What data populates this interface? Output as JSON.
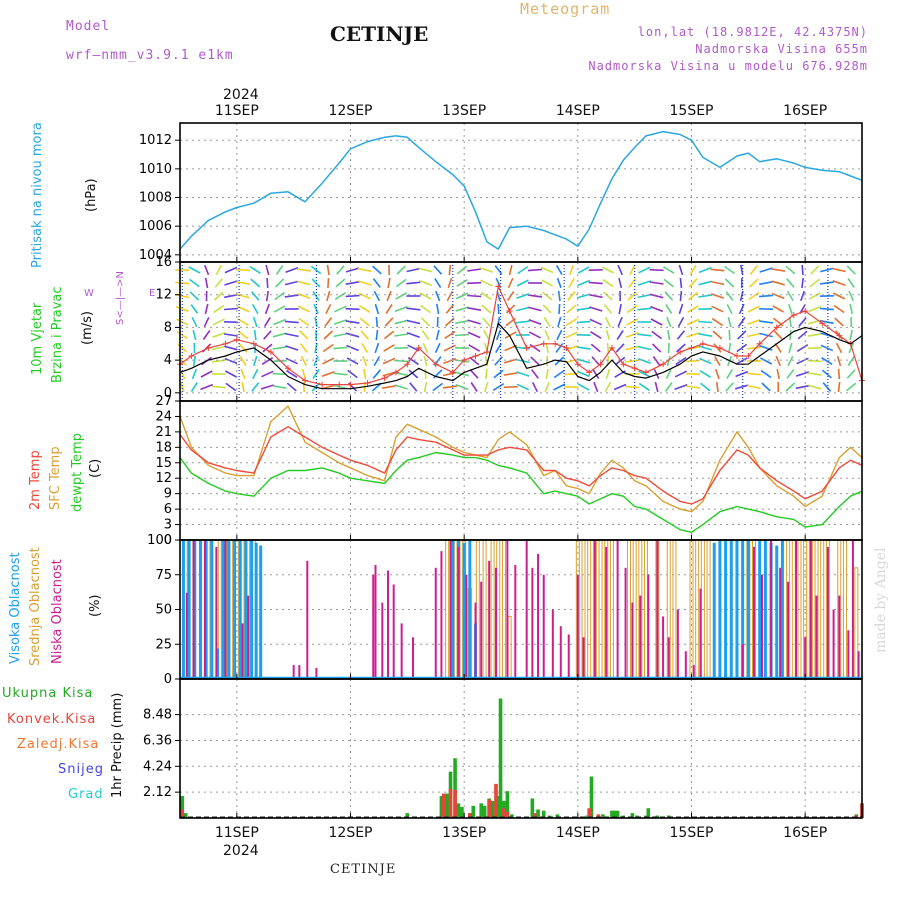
{
  "header": {
    "model_label": "Model",
    "model_name": "wrf—nmm_v3.9.1  e1km",
    "location": "CETINJE",
    "product": "Meteogram",
    "lonlat": "lon,lat (18.9812E, 42.4375N)",
    "elevation": "Nadmorska Visina 655m",
    "elevation_model": "Nadmorska Visina u modelu 676.928m",
    "watermark": "made by Angel",
    "footer_location": "CETINJE"
  },
  "colors": {
    "pressure": "#2aa7e0",
    "temp2m": "#f04a3a",
    "sfc": "#d9a030",
    "dewpt": "#22cc22",
    "high_cloud": "#1aa0ee",
    "mid_cloud": "#d9a030",
    "low_cloud": "#cc1f8f",
    "total_precip": "#22aa22",
    "conv_precip": "#e8443a",
    "freezing": "#ee7733",
    "snow": "#4444ee",
    "graupel": "#22cccc",
    "magenta_text": "#b05acb",
    "gold_text": "#e3b56a"
  },
  "axis_labels": {
    "year": "2024",
    "days": [
      "11SEP",
      "12SEP",
      "13SEP",
      "14SEP",
      "15SEP",
      "16SEP"
    ]
  },
  "panels": {
    "pressure": {
      "title": "Pritisak na nivou mora",
      "unit": "(hPa)"
    },
    "wind": {
      "title1": "10m Vjetar",
      "title2": "Brzina i Pravac",
      "unit": "(m/s)",
      "compass_ns": "S<—|—>N",
      "compass_w": "W",
      "compass_e": "E"
    },
    "temp": {
      "title1": "2m Temp",
      "title2": "SFC Temp",
      "title3": "dewpt Temp",
      "unit": "(C)"
    },
    "cloud": {
      "title1": "Visoka Oblacnost",
      "title2": "Srednja Oblacnost",
      "title3": "Niska Oblacnost",
      "unit": "(%)"
    },
    "precip": {
      "title": "1hr Precip (mm)",
      "legend": [
        "Ukupna Kisa",
        "Konvek.Kisa",
        "Zaledj.Kisa",
        "Snijeg",
        "Grad"
      ]
    }
  },
  "chart_data": [
    {
      "type": "line",
      "name": "pressure",
      "xlabel": "",
      "ylabel": "(hPa)",
      "x_range": [
        10.5,
        16.5
      ],
      "ylim": [
        1003.5,
        1013.2
      ],
      "yticks": [
        1004,
        1006,
        1008,
        1010,
        1012
      ],
      "grid": true,
      "x": [
        10.5,
        10.6,
        10.75,
        10.9,
        11.0,
        11.15,
        11.3,
        11.45,
        11.6,
        11.75,
        11.9,
        12.0,
        12.15,
        12.3,
        12.4,
        12.5,
        12.6,
        12.75,
        12.9,
        13.0,
        13.1,
        13.2,
        13.3,
        13.4,
        13.55,
        13.7,
        13.8,
        13.9,
        14.0,
        14.1,
        14.2,
        14.3,
        14.4,
        14.5,
        14.6,
        14.75,
        14.9,
        15.0,
        15.1,
        15.25,
        15.4,
        15.5,
        15.6,
        15.75,
        15.9,
        16.0,
        16.15,
        16.3,
        16.4,
        16.5
      ],
      "series": [
        {
          "values": [
            1004.4,
            1005.3,
            1006.4,
            1007.0,
            1007.3,
            1007.6,
            1008.3,
            1008.4,
            1007.7,
            1009.0,
            1010.4,
            1011.4,
            1011.9,
            1012.2,
            1012.3,
            1012.2,
            1011.5,
            1010.5,
            1009.6,
            1008.8,
            1007.0,
            1004.9,
            1004.4,
            1005.9,
            1006.0,
            1005.7,
            1005.4,
            1005.1,
            1004.6,
            1005.8,
            1007.6,
            1009.3,
            1010.6,
            1011.5,
            1012.3,
            1012.6,
            1012.4,
            1012.0,
            1010.8,
            1010.1,
            1010.9,
            1011.1,
            1010.5,
            1010.7,
            1010.4,
            1010.1,
            1009.9,
            1009.8,
            1009.5,
            1009.2
          ]
        }
      ]
    },
    {
      "type": "line",
      "name": "wind",
      "xlabel": "",
      "ylabel": "(m/s)",
      "x_range": [
        10.5,
        16.5
      ],
      "ylim": [
        -1,
        16
      ],
      "yticks": [
        0,
        4,
        8,
        12,
        16
      ],
      "yticks_shown": [
        0,
        4,
        8,
        12,
        16
      ],
      "grid": true,
      "x": [
        10.5,
        10.6,
        10.75,
        10.9,
        11.0,
        11.15,
        11.3,
        11.45,
        11.6,
        11.75,
        11.9,
        12.0,
        12.15,
        12.3,
        12.4,
        12.5,
        12.6,
        12.75,
        12.9,
        13.0,
        13.1,
        13.2,
        13.3,
        13.4,
        13.55,
        13.7,
        13.8,
        13.9,
        14.0,
        14.1,
        14.2,
        14.3,
        14.4,
        14.5,
        14.6,
        14.75,
        14.9,
        15.0,
        15.1,
        15.25,
        15.4,
        15.5,
        15.6,
        15.75,
        15.9,
        16.0,
        16.15,
        16.3,
        16.4,
        16.5
      ],
      "series": [
        {
          "name": "speed",
          "values": [
            2.5,
            3.0,
            4.0,
            4.5,
            5.0,
            5.5,
            4.0,
            2.0,
            1.0,
            0.5,
            0.5,
            0.5,
            0.8,
            1.2,
            1.5,
            2.0,
            3.0,
            2.0,
            1.5,
            2.5,
            3.0,
            3.5,
            8.5,
            7.0,
            3.0,
            3.5,
            4.0,
            3.8,
            2.0,
            1.5,
            2.5,
            4.0,
            2.5,
            2.0,
            1.8,
            2.5,
            3.5,
            4.5,
            5.0,
            4.5,
            3.5,
            3.5,
            4.5,
            6.0,
            7.5,
            8.0,
            7.5,
            6.5,
            6.0,
            7.0
          ]
        },
        {
          "name": "gust",
          "values": [
            3.5,
            4.5,
            5.5,
            6.0,
            6.5,
            6.0,
            5.0,
            3.0,
            1.5,
            1.0,
            1.0,
            1.0,
            1.2,
            1.8,
            2.5,
            3.5,
            5.5,
            3.5,
            2.5,
            4.0,
            4.5,
            5.0,
            13.0,
            10.0,
            5.5,
            6.0,
            6.0,
            5.5,
            3.5,
            2.5,
            3.5,
            5.5,
            3.5,
            3.0,
            2.5,
            3.5,
            5.0,
            5.5,
            6.0,
            5.5,
            4.5,
            4.5,
            6.0,
            8.0,
            9.5,
            10.0,
            8.5,
            7.0,
            6.0,
            1.5
          ]
        }
      ]
    },
    {
      "type": "line",
      "name": "temperature",
      "xlabel": "",
      "ylabel": "(C)",
      "x_range": [
        10.5,
        16.5
      ],
      "ylim": [
        0,
        27
      ],
      "yticks": [
        0,
        3,
        6,
        9,
        12,
        15,
        18,
        21,
        24,
        27
      ],
      "grid": true,
      "x": [
        10.5,
        10.6,
        10.75,
        10.9,
        11.0,
        11.15,
        11.3,
        11.45,
        11.6,
        11.75,
        11.9,
        12.0,
        12.15,
        12.3,
        12.4,
        12.5,
        12.6,
        12.75,
        12.9,
        13.0,
        13.1,
        13.2,
        13.3,
        13.4,
        13.55,
        13.7,
        13.8,
        13.9,
        14.0,
        14.1,
        14.2,
        14.3,
        14.4,
        14.5,
        14.6,
        14.75,
        14.9,
        15.0,
        15.1,
        15.25,
        15.4,
        15.5,
        15.6,
        15.75,
        15.9,
        16.0,
        16.15,
        16.3,
        16.4,
        16.5
      ],
      "series": [
        {
          "name": "2m Temp",
          "values": [
            20.5,
            17.5,
            15.0,
            14.0,
            13.5,
            13.0,
            20.0,
            22.0,
            20.0,
            18.0,
            16.5,
            15.5,
            14.5,
            13.0,
            17.5,
            20.0,
            19.5,
            19.0,
            17.5,
            16.5,
            16.5,
            16.5,
            17.5,
            18.0,
            17.5,
            13.5,
            13.5,
            12.0,
            11.5,
            10.5,
            12.5,
            14.0,
            13.5,
            12.5,
            12.0,
            9.5,
            7.5,
            7.0,
            8.0,
            13.5,
            17.5,
            16.5,
            14.0,
            11.5,
            9.5,
            8.0,
            9.5,
            14.0,
            15.5,
            14.5
          ]
        },
        {
          "name": "SFC Temp",
          "values": [
            24.0,
            18.0,
            14.5,
            13.0,
            12.5,
            12.5,
            23.0,
            26.0,
            19.0,
            17.0,
            15.0,
            14.0,
            12.5,
            11.5,
            20.0,
            22.5,
            21.5,
            20.0,
            18.0,
            17.0,
            16.5,
            16.0,
            19.5,
            21.0,
            18.5,
            12.5,
            13.5,
            10.5,
            10.0,
            9.0,
            13.0,
            15.5,
            14.0,
            11.5,
            10.5,
            7.5,
            6.0,
            5.5,
            7.5,
            15.5,
            21.0,
            18.0,
            14.0,
            10.5,
            8.5,
            6.5,
            8.5,
            16.0,
            18.0,
            16.0
          ]
        },
        {
          "name": "dewpt Temp",
          "values": [
            16.0,
            13.0,
            11.0,
            9.5,
            9.0,
            8.5,
            12.0,
            13.5,
            13.5,
            14.0,
            13.0,
            12.0,
            11.5,
            11.0,
            13.5,
            15.5,
            16.0,
            17.0,
            16.5,
            16.0,
            16.0,
            15.5,
            14.5,
            14.0,
            13.0,
            9.0,
            9.5,
            9.0,
            8.5,
            7.0,
            8.0,
            9.0,
            8.5,
            6.5,
            6.0,
            4.0,
            2.0,
            1.5,
            3.0,
            5.5,
            6.5,
            6.0,
            5.5,
            4.5,
            4.0,
            2.5,
            3.0,
            6.5,
            8.5,
            9.5
          ]
        }
      ]
    },
    {
      "type": "bar",
      "name": "cloud cover",
      "xlabel": "",
      "ylabel": "(%)",
      "x_range": [
        10.5,
        16.5
      ],
      "ylim": [
        0,
        100
      ],
      "yticks": [
        0,
        25,
        50,
        75,
        100
      ],
      "grid": true,
      "series": [
        {
          "name": "Visoka Oblacnost",
          "x": [
            10.53,
            10.58,
            10.63,
            10.68,
            10.73,
            10.78,
            10.83,
            10.88,
            10.93,
            10.98,
            11.03,
            11.08,
            11.13,
            11.17,
            11.21,
            12.9,
            12.95,
            13.0,
            13.05,
            13.1,
            15.2,
            15.25,
            15.3,
            15.35,
            15.4,
            15.45,
            15.5,
            15.6,
            15.65,
            15.7,
            15.75,
            15.8
          ],
          "values": [
            100,
            100,
            100,
            100,
            100,
            100,
            22,
            100,
            100,
            100,
            100,
            100,
            100,
            98,
            96,
            100,
            100,
            98,
            100,
            40,
            98,
            100,
            100,
            100,
            100,
            100,
            100,
            100,
            100,
            98,
            96,
            100
          ]
        },
        {
          "name": "Srednja Oblacnost",
          "x": [
            10.55,
            10.6,
            10.7,
            10.75,
            10.85,
            10.9,
            10.95,
            11.0,
            11.05,
            11.1,
            11.15,
            12.85,
            12.9,
            12.95,
            13.0,
            13.05,
            13.12,
            13.18,
            13.25,
            13.3,
            13.35,
            13.4,
            14.0,
            14.05,
            14.1,
            14.15,
            14.2,
            14.25,
            14.3,
            14.45,
            14.5,
            14.55,
            14.6,
            14.7,
            14.8,
            14.85,
            15.0,
            15.05,
            15.1,
            15.15,
            15.5,
            15.55,
            15.85,
            15.9,
            15.95,
            16.0,
            16.05,
            16.1,
            16.15,
            16.2,
            16.3,
            16.35,
            16.45
          ],
          "values": [
            100,
            100,
            100,
            100,
            100,
            100,
            100,
            100,
            100,
            100,
            100,
            100,
            100,
            100,
            100,
            65,
            100,
            100,
            100,
            100,
            100,
            45,
            100,
            100,
            100,
            100,
            100,
            100,
            100,
            100,
            100,
            100,
            100,
            100,
            100,
            100,
            100,
            100,
            100,
            100,
            100,
            100,
            100,
            100,
            100,
            100,
            100,
            100,
            100,
            100,
            100,
            100,
            80
          ]
        },
        {
          "name": "Niska Oblacnost",
          "x": [
            10.56,
            10.62,
            10.72,
            10.82,
            10.9,
            11.05,
            11.1,
            11.5,
            11.55,
            11.62,
            11.7,
            12.2,
            12.22,
            12.28,
            12.33,
            12.38,
            12.45,
            12.55,
            12.75,
            12.8,
            12.88,
            12.95,
            13.02,
            13.1,
            13.15,
            13.22,
            13.28,
            13.38,
            13.45,
            13.55,
            13.6,
            13.65,
            13.7,
            13.78,
            13.85,
            13.92,
            14.0,
            14.05,
            14.15,
            14.25,
            14.35,
            14.42,
            14.48,
            14.55,
            14.62,
            14.7,
            14.75,
            14.8,
            14.88,
            14.95,
            15.02,
            15.08,
            15.45,
            15.55,
            15.62,
            15.7,
            15.78,
            15.85,
            15.92,
            16.0,
            16.05,
            16.1,
            16.2,
            16.25,
            16.3,
            16.38,
            16.42,
            16.47
          ],
          "values": [
            62,
            100,
            100,
            95,
            100,
            40,
            60,
            10,
            10,
            85,
            8,
            75,
            82,
            55,
            78,
            68,
            40,
            30,
            80,
            92,
            100,
            95,
            75,
            55,
            70,
            85,
            80,
            100,
            82,
            100,
            80,
            90,
            75,
            50,
            38,
            32,
            75,
            30,
            100,
            95,
            100,
            80,
            55,
            60,
            75,
            100,
            45,
            30,
            50,
            20,
            10,
            65,
            25,
            95,
            75,
            100,
            80,
            70,
            100,
            30,
            100,
            60,
            95,
            50,
            60,
            35,
            100,
            20
          ]
        }
      ]
    },
    {
      "type": "bar",
      "name": "precipitation",
      "xlabel": "",
      "ylabel": "1hr Precip (mm)",
      "x_range": [
        10.5,
        16.5
      ],
      "ylim": [
        0,
        11.4
      ],
      "yticks": [
        2.12,
        4.24,
        6.36,
        8.48
      ],
      "grid": true,
      "series": [
        {
          "name": "Ukupna Kisa",
          "x": [
            10.52,
            10.55,
            12.5,
            12.8,
            12.85,
            12.88,
            12.92,
            12.95,
            12.98,
            13.05,
            13.08,
            13.15,
            13.18,
            13.22,
            13.25,
            13.3,
            13.32,
            13.35,
            13.38,
            13.42,
            13.6,
            13.65,
            13.7,
            13.75,
            13.82,
            14.08,
            14.12,
            14.22,
            14.3,
            14.32,
            14.35,
            14.4,
            14.48,
            14.52,
            14.6,
            14.62,
            14.7,
            14.8,
            16.45,
            16.5
          ],
          "values": [
            1.8,
            0.4,
            0.4,
            1.8,
            2.0,
            3.8,
            4.9,
            1.2,
            0.9,
            0.4,
            1.0,
            1.2,
            1.0,
            1.6,
            1.4,
            1.8,
            9.8,
            1.4,
            2.2,
            0.3,
            1.6,
            0.7,
            0.6,
            0.2,
            0.3,
            0.2,
            3.4,
            0.3,
            0.6,
            0.6,
            0.6,
            0.2,
            0.4,
            0.2,
            0.2,
            0.8,
            0.2,
            0.2,
            0.3,
            1.2
          ]
        },
        {
          "name": "Konvek.Kisa",
          "x": [
            10.52,
            12.82,
            12.88,
            12.92,
            13.05,
            13.22,
            13.28,
            13.35,
            13.38,
            13.62,
            14.1,
            14.18,
            16.45,
            16.5
          ],
          "values": [
            0.7,
            2.0,
            2.4,
            2.3,
            0.4,
            1.5,
            2.8,
            0.8,
            0.5,
            0.4,
            0.8,
            0.3,
            0.2,
            1.2
          ]
        }
      ]
    }
  ]
}
